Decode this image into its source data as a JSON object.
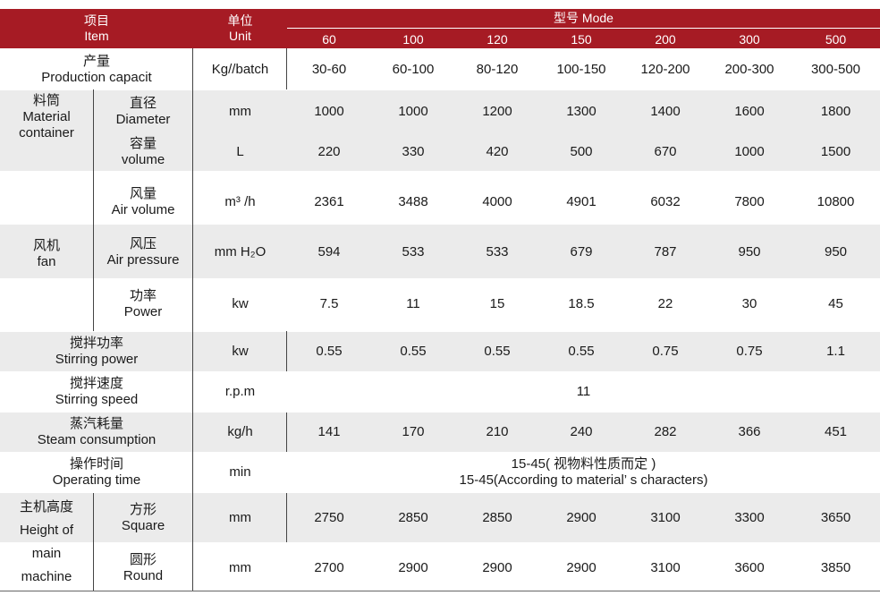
{
  "header": {
    "item_cn": "项目",
    "item_en": "Item",
    "unit_cn": "单位",
    "unit_en": "Unit",
    "model_label": "型号 Mode",
    "models": [
      "60",
      "100",
      "120",
      "150",
      "200",
      "300",
      "500"
    ]
  },
  "rows": {
    "production": {
      "cn": "产量",
      "en": "Production capacit",
      "unit": "Kg//batch",
      "values": [
        "30-60",
        "60-100",
        "80-120",
        "100-150",
        "120-200",
        "200-300",
        "300-500"
      ]
    },
    "material_container": {
      "cn": "料筒",
      "en1": "Material",
      "en2": "container"
    },
    "diameter": {
      "cn": "直径",
      "en": "Diameter",
      "unit": "mm",
      "values": [
        "1000",
        "1000",
        "1200",
        "1300",
        "1400",
        "1600",
        "1800"
      ]
    },
    "volume": {
      "cn": "容量",
      "en": "volume",
      "unit": "L",
      "values": [
        "220",
        "330",
        "420",
        "500",
        "670",
        "1000",
        "1500"
      ]
    },
    "fan": {
      "cn": "风机",
      "en": "fan"
    },
    "air_volume": {
      "cn": "风量",
      "en": "Air volume",
      "unit": "m³ /h",
      "values": [
        "2361",
        "3488",
        "4000",
        "4901",
        "6032",
        "7800",
        "10800"
      ]
    },
    "air_pressure": {
      "cn": "风压",
      "en": "Air pressure",
      "unit": "mm H₂O",
      "values": [
        "594",
        "533",
        "533",
        "679",
        "787",
        "950",
        "950"
      ]
    },
    "power": {
      "cn": "功率",
      "en": "Power",
      "unit": "kw",
      "values": [
        "7.5",
        "11",
        "15",
        "18.5",
        "22",
        "30",
        "45"
      ]
    },
    "stirring_power": {
      "cn": "搅拌功率",
      "en": "Stirring power",
      "unit": "kw",
      "values": [
        "0.55",
        "0.55",
        "0.55",
        "0.55",
        "0.75",
        "0.75",
        "1.1"
      ]
    },
    "stirring_speed": {
      "cn": "搅拌速度",
      "en": "Stirring speed",
      "unit": "r.p.m",
      "value": "11"
    },
    "steam": {
      "cn": "蒸汽耗量",
      "en": "Steam consumption",
      "unit": "kg/h",
      "values": [
        "141",
        "170",
        "210",
        "240",
        "282",
        "366",
        "451"
      ]
    },
    "operating": {
      "cn": "操作时间",
      "en": "Operating time",
      "unit": "min",
      "value_cn": "15-45( 视物料性质而定 )",
      "value_en": "15-45(According to material’ s characters)"
    },
    "height": {
      "cn": "主机高度",
      "en1": "Height of",
      "en2": "main",
      "en3": "machine"
    },
    "square": {
      "cn": "方形",
      "en": "Square",
      "unit": "mm",
      "values": [
        "2750",
        "2850",
        "2850",
        "2900",
        "3100",
        "3300",
        "3650"
      ]
    },
    "round": {
      "cn": "圆形",
      "en": "Round",
      "unit": "mm",
      "values": [
        "2700",
        "2900",
        "2900",
        "2900",
        "3100",
        "3600",
        "3850"
      ]
    }
  }
}
